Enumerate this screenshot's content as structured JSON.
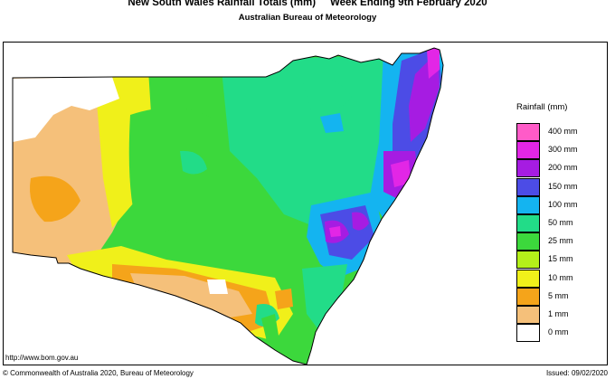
{
  "title": "New South Wales Rainfall Totals (mm)     Week Ending 9th February 2020",
  "subtitle": "Australian Bureau of Meteorology",
  "legend": {
    "title": "Rainfall (mm)",
    "items": [
      {
        "label": "400 mm",
        "color": "#ff5bc8"
      },
      {
        "label": "300 mm",
        "color": "#e226e6"
      },
      {
        "label": "200 mm",
        "color": "#a61ce2"
      },
      {
        "label": "150 mm",
        "color": "#4c4ce6"
      },
      {
        "label": "100 mm",
        "color": "#14b4f0"
      },
      {
        "label": "50 mm",
        "color": "#22dc88"
      },
      {
        "label": "25 mm",
        "color": "#3cd83c"
      },
      {
        "label": "15 mm",
        "color": "#b4f01a"
      },
      {
        "label": "10 mm",
        "color": "#f0f01a"
      },
      {
        "label": "5 mm",
        "color": "#f5a41a"
      },
      {
        "label": "1 mm",
        "color": "#f5c07a"
      },
      {
        "label": "0 mm",
        "color": "#ffffff"
      }
    ]
  },
  "url": "http://www.bom.gov.au",
  "copyright": "© Commonwealth of Australia 2020, Bureau of Meteorology",
  "issued": "Issued: 09/02/2020"
}
